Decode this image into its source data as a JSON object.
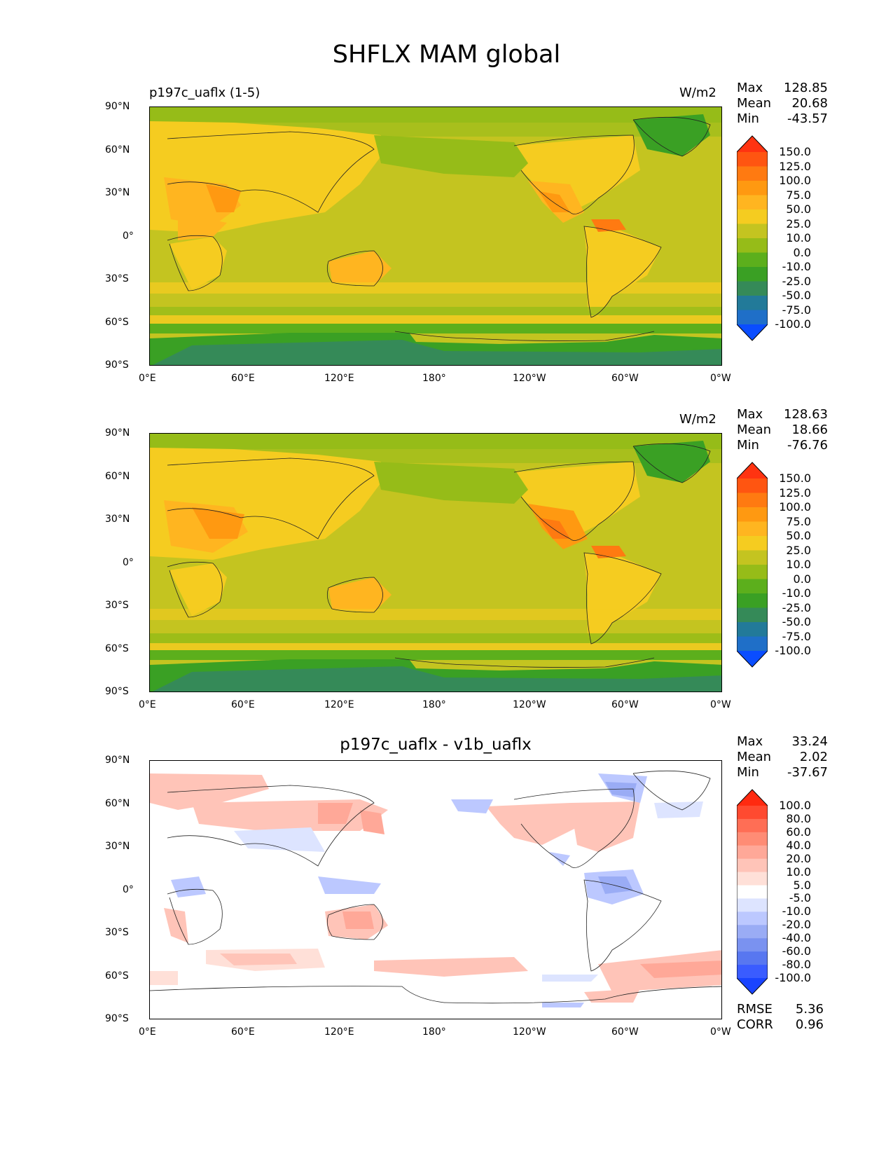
{
  "title": "SHFLX MAM global",
  "lon_ticks": [
    "0°E",
    "60°E",
    "120°E",
    "180°",
    "120°W",
    "60°W",
    "0°W"
  ],
  "lat_ticks": [
    "90°N",
    "60°N",
    "30°N",
    "0°",
    "30°S",
    "60°S",
    "90°S"
  ],
  "panels": [
    {
      "title_left": "p197c_uaflx (1-5)",
      "title_center": "",
      "units": "W/m2",
      "stats": {
        "max_label": "Max",
        "max": "128.85",
        "mean_label": "Mean",
        "mean": "20.68",
        "min_label": "Min",
        "min": "-43.57"
      },
      "colorbar": {
        "levels": [
          "150.0",
          "125.0",
          "100.0",
          "75.0",
          "50.0",
          "25.0",
          "10.0",
          "0.0",
          "-10.0",
          "-25.0",
          "-50.0",
          "-75.0",
          "-100.0"
        ],
        "colors": [
          "#ff3311",
          "#ff5511",
          "#ff7a11",
          "#ff9911",
          "#ffb520",
          "#f5cc20",
          "#c4c420",
          "#96bc18",
          "#5caf1c",
          "#3aa024",
          "#358a58",
          "#227a99",
          "#1f6fc8",
          "#0a4dff"
        ]
      }
    },
    {
      "title_left": "",
      "title_center": "",
      "units": "W/m2",
      "stats": {
        "max_label": "Max",
        "max": "128.63",
        "mean_label": "Mean",
        "mean": "18.66",
        "min_label": "Min",
        "min": "-76.76"
      },
      "colorbar": {
        "levels": [
          "150.0",
          "125.0",
          "100.0",
          "75.0",
          "50.0",
          "25.0",
          "10.0",
          "0.0",
          "-10.0",
          "-25.0",
          "-50.0",
          "-75.0",
          "-100.0"
        ],
        "colors": [
          "#ff3311",
          "#ff5511",
          "#ff7a11",
          "#ff9911",
          "#ffb520",
          "#f5cc20",
          "#c4c420",
          "#96bc18",
          "#5caf1c",
          "#3aa024",
          "#358a58",
          "#227a99",
          "#1f6fc8",
          "#0a4dff"
        ]
      }
    },
    {
      "title_left": "",
      "title_center": "p197c_uaflx - v1b_uaflx",
      "units": "",
      "stats": {
        "max_label": "Max",
        "max": "33.24",
        "mean_label": "Mean",
        "mean": "2.02",
        "min_label": "Min",
        "min": "-37.67"
      },
      "colorbar": {
        "levels": [
          "100.0",
          "80.0",
          "60.0",
          "40.0",
          "20.0",
          "10.0",
          "5.0",
          "-5.0",
          "-10.0",
          "-20.0",
          "-40.0",
          "-60.0",
          "-80.0",
          "-100.0"
        ],
        "colors": [
          "#ff2a10",
          "#ff4a30",
          "#ff6e55",
          "#ff8c75",
          "#ffa898",
          "#ffc4b8",
          "#ffe0d8",
          "#ffffff",
          "#dde4ff",
          "#bcc8ff",
          "#9aacf5",
          "#7a92f0",
          "#5877f0",
          "#3a5cff",
          "#1a44ff"
        ]
      },
      "extra": {
        "rmse_label": "RMSE",
        "rmse": "5.36",
        "corr_label": "CORR",
        "corr": "0.96"
      }
    }
  ]
}
